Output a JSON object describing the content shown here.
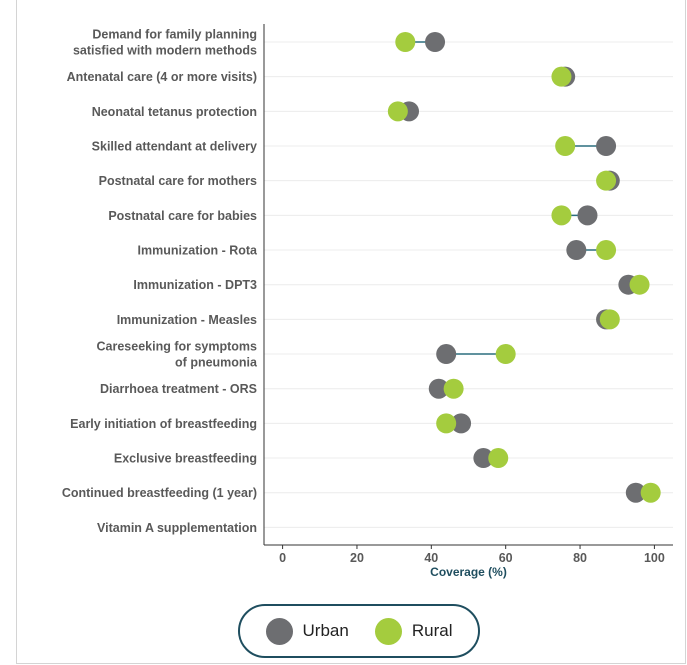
{
  "colors": {
    "urban": "#6d6e71",
    "rural": "#a4cc3e",
    "connector": "#2b6e7e",
    "grid": "#ececec",
    "axis": "#333333"
  },
  "chart_data": {
    "type": "dumbbell",
    "xlabel": "Coverage (%)",
    "xlim": [
      -5,
      105
    ],
    "xticks": [
      0,
      20,
      40,
      60,
      80,
      100
    ],
    "grid": true,
    "legend_position": "bottom",
    "categories": [
      [
        "Demand for family planning",
        "satisfied with modern methods"
      ],
      [
        "Antenatal care (4 or more visits)"
      ],
      [
        "Neonatal tetanus protection"
      ],
      [
        "Skilled attendant at delivery"
      ],
      [
        "Postnatal care for mothers"
      ],
      [
        "Postnatal care for babies"
      ],
      [
        "Immunization - Rota"
      ],
      [
        "Immunization - DPT3"
      ],
      [
        "Immunization - Measles"
      ],
      [
        "Careseeking for symptoms",
        "of pneumonia"
      ],
      [
        "Diarrhoea treatment - ORS"
      ],
      [
        "Early initiation of breastfeeding"
      ],
      [
        "Exclusive breastfeeding"
      ],
      [
        "Continued breastfeeding (1 year)"
      ],
      [
        "Vitamin A supplementation"
      ]
    ],
    "series": [
      {
        "name": "Urban",
        "values": [
          41,
          76,
          34,
          87,
          88,
          82,
          79,
          93,
          87,
          44,
          42,
          48,
          54,
          95,
          null
        ]
      },
      {
        "name": "Rural",
        "values": [
          33,
          75,
          31,
          76,
          87,
          75,
          87,
          96,
          88,
          60,
          46,
          44,
          58,
          99,
          null
        ]
      }
    ]
  }
}
